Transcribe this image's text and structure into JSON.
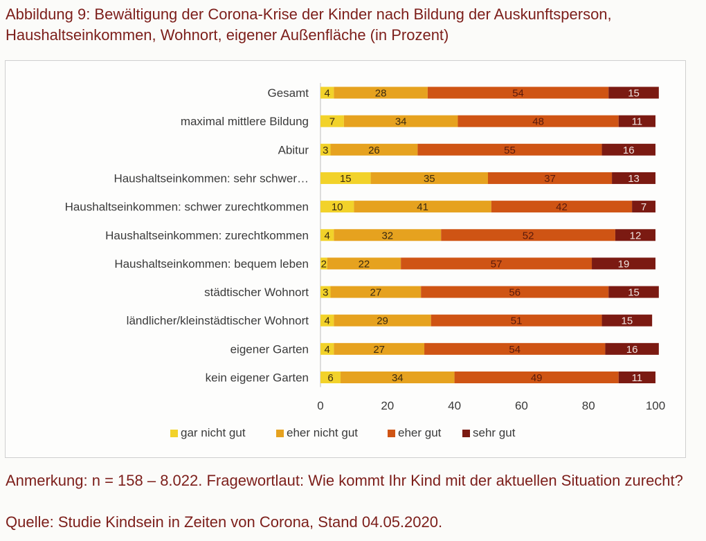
{
  "figure": {
    "title": "Abbildung 9: Bewältigung der Corona-Krise der Kinder nach Bildung der Auskunftsperson, Haushaltseinkommen, Wohnort, eigener Außenfläche (in Prozent)",
    "note": "Anmerkung: n = 158 – 8.022. Fragewortlaut: Wie kommt Ihr Kind mit der aktuellen Situation zurecht?",
    "source": "Quelle: Studie Kindsein in Zeiten von Corona, Stand 04.05.2020."
  },
  "chart_data": {
    "type": "bar",
    "orientation": "horizontal",
    "stacked": true,
    "categories": [
      "Gesamt",
      "maximal mittlere Bildung",
      "Abitur",
      "Haushaltseinkommen: sehr schwer…",
      "Haushaltseinkommen: schwer zurechtkommen",
      "Haushaltseinkommen: zurechtkommen",
      "Haushaltseinkommen: bequem leben",
      "städtischer Wohnort",
      "ländlicher/kleinstädtischer Wohnort",
      "eigener Garten",
      "kein eigener Garten"
    ],
    "series": [
      {
        "name": "gar nicht gut",
        "color": "#f2d22a",
        "values": [
          4,
          7,
          3,
          15,
          10,
          4,
          2,
          3,
          4,
          4,
          6
        ]
      },
      {
        "name": "eher nicht gut",
        "color": "#e6a21f",
        "values": [
          28,
          34,
          26,
          35,
          41,
          32,
          22,
          27,
          29,
          27,
          34
        ]
      },
      {
        "name": "eher gut",
        "color": "#cf5414",
        "values": [
          54,
          48,
          55,
          37,
          42,
          52,
          57,
          56,
          51,
          54,
          49
        ]
      },
      {
        "name": "sehr gut",
        "color": "#7b1a12",
        "values": [
          15,
          11,
          16,
          13,
          7,
          12,
          19,
          15,
          15,
          16,
          11
        ]
      }
    ],
    "xlim": [
      0,
      100
    ],
    "xticks": [
      "0",
      "20",
      "40",
      "60",
      "80",
      "100"
    ],
    "grid": false,
    "legend_position": "bottom"
  }
}
